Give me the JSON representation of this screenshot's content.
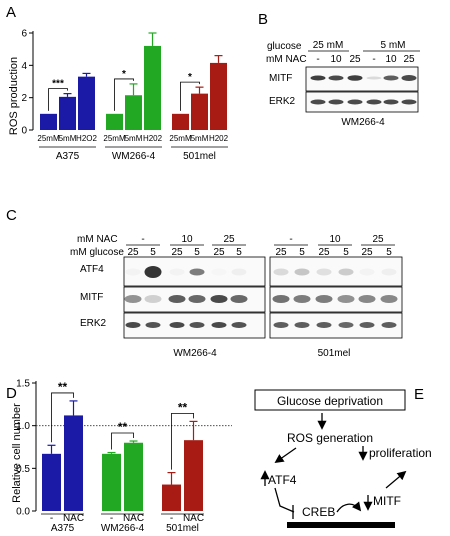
{
  "panels": {
    "A": {
      "letter": "A"
    },
    "B": {
      "letter": "B"
    },
    "C": {
      "letter": "C"
    },
    "D": {
      "letter": "D"
    },
    "E": {
      "letter": "E"
    }
  },
  "colors": {
    "A375": "#1a1aa6",
    "WM266-4": "#22a822",
    "501mel": "#a81a14",
    "band": "#2a2a2a"
  },
  "chart_data": [
    {
      "panel": "A",
      "type": "bar",
      "ylabel": "ROS production",
      "ylim": [
        0,
        6
      ],
      "yticks": [
        0,
        2,
        4,
        6
      ],
      "groups": [
        {
          "name": "A375",
          "color": "#1a1aa6",
          "categories": [
            "25mM",
            "5mM",
            "H2O2"
          ],
          "values": [
            1.0,
            2.05,
            3.3
          ],
          "errors": [
            0,
            0.2,
            0.2
          ],
          "significance": "***"
        },
        {
          "name": "WM266-4",
          "color": "#22a822",
          "categories": [
            "25mM",
            "5mM",
            "H202"
          ],
          "values": [
            1.0,
            2.15,
            5.2
          ],
          "errors": [
            0,
            0.7,
            0.8
          ],
          "significance": "*"
        },
        {
          "name": "501mel",
          "color": "#a81a14",
          "categories": [
            "25mM",
            "5mM",
            "H202"
          ],
          "values": [
            1.0,
            2.25,
            4.15
          ],
          "errors": [
            0,
            0.4,
            0.45
          ],
          "significance": "*"
        }
      ]
    },
    {
      "panel": "D",
      "type": "bar",
      "ylabel": "Relative cell number",
      "ylim": [
        0,
        1.5
      ],
      "yticks": [
        0.0,
        0.5,
        1.0,
        1.5
      ],
      "ytick_labels": [
        "0.0",
        "0.5",
        "1.0",
        "1.5"
      ],
      "reference_line": 1.0,
      "groups": [
        {
          "name": "A375",
          "color": "#1a1aa6",
          "categories": [
            "-",
            "NAC"
          ],
          "values": [
            0.67,
            1.12
          ],
          "errors": [
            0.1,
            0.17
          ],
          "significance": "**"
        },
        {
          "name": "WM266-4",
          "color": "#22a822",
          "categories": [
            "-",
            "NAC"
          ],
          "values": [
            0.67,
            0.8
          ],
          "errors": [
            0.015,
            0.02
          ],
          "significance": "**"
        },
        {
          "name": "501mel",
          "color": "#a81a14",
          "categories": [
            "-",
            "NAC"
          ],
          "values": [
            0.31,
            0.83
          ],
          "errors": [
            0.14,
            0.22
          ],
          "significance": "**"
        }
      ]
    }
  ],
  "blotB": {
    "glucose_label": "glucose",
    "glucose_levels": [
      "25 mM",
      "5 mM"
    ],
    "nac_label": "mM NAC",
    "nac_values": [
      "-",
      "10",
      "25",
      "-",
      "10",
      "25"
    ],
    "rows": [
      "MITF",
      "ERK2"
    ],
    "cell_line": "WM266-4"
  },
  "blotC": {
    "nac_label": "mM NAC",
    "glucose_label": "mM glucose",
    "nac_values": [
      "-",
      "10",
      "25",
      "-",
      "10",
      "25"
    ],
    "glucose_values": [
      "25",
      "5",
      "25",
      "5",
      "25",
      "5",
      "25",
      "5",
      "25",
      "5",
      "25",
      "5"
    ],
    "rows": [
      "ATF4",
      "MITF",
      "ERK2"
    ],
    "cell_lines": [
      "WM266-4",
      "501mel"
    ]
  },
  "diagramE": {
    "box": "Glucose deprivation",
    "ros": "ROS generation",
    "atf4": "ATF4",
    "creb": "CREB",
    "mitf": "MITF",
    "proliferation": "proliferation"
  }
}
